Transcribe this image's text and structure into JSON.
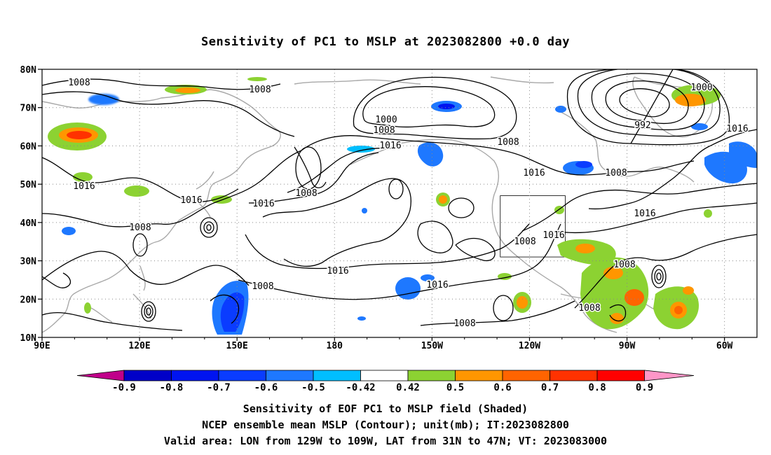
{
  "title": "Sensitivity of PC1 to MSLP at 2023082800 +0.0 day",
  "lat_labels": [
    "80N",
    "70N",
    "60N",
    "50N",
    "40N",
    "30N",
    "20N",
    "10N"
  ],
  "lon_labels": [
    "90E",
    "120E",
    "150E",
    "180",
    "150W",
    "120W",
    "90W",
    "60W"
  ],
  "contour_labels": [
    "1008",
    "1008",
    "1000",
    "1008",
    "1016",
    "1008",
    "1016",
    "1008",
    "1000",
    "992",
    "1016",
    "1016",
    "1008",
    "1016",
    "1016",
    "1008",
    "1016",
    "1008",
    "1016",
    "1016",
    "1008",
    "1008",
    "1008"
  ],
  "colorbar": {
    "labels": [
      "-0.9",
      "-0.8",
      "-0.7",
      "-0.6",
      "-0.5",
      "-0.42",
      "0.42",
      "0.5",
      "0.6",
      "0.7",
      "0.8",
      "0.9"
    ],
    "colors": [
      "#c0008a",
      "#0000c8",
      "#0014f0",
      "#0a3cff",
      "#1e78ff",
      "#00beff",
      "#ffffff",
      "#8cd232",
      "#ff9600",
      "#ff6400",
      "#ff3200",
      "#ff0000",
      "#ff96c8"
    ]
  },
  "captions": {
    "line1": "Sensitivity of EOF PC1 to MSLP field (Shaded)",
    "line2": "NCEP ensemble mean MSLP (Contour); unit(mb); IT:2023082800",
    "line3": "Valid area: LON from 129W to 109W, LAT from 31N to 47N; VT: 2023083000"
  },
  "map": {
    "lon_range": [
      90,
      310
    ],
    "lat_range": [
      10,
      80
    ],
    "valid_box": {
      "lon": [
        231,
        251
      ],
      "lat": [
        31,
        47
      ]
    }
  }
}
